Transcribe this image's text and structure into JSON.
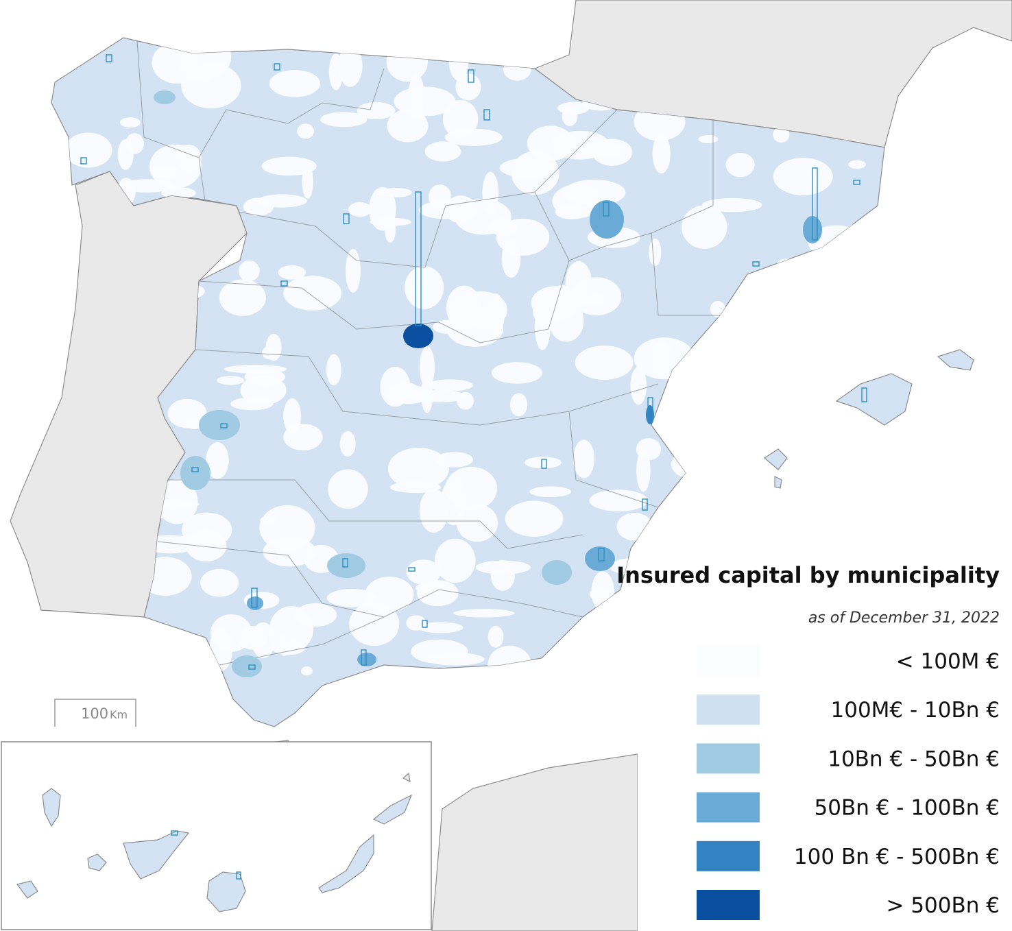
{
  "title": "Insured capital by municipality",
  "subtitle": "as of December 31, 2022",
  "scale_bar": {
    "value": "100",
    "unit": "Km"
  },
  "legend": [
    {
      "label": "< 100M €",
      "color": "#fbfcfe"
    },
    {
      "label": "100M€ - 10Bn €",
      "color": "#cfe0f2"
    },
    {
      "label": "10Bn € - 50Bn €",
      "color": "#a0cbe3"
    },
    {
      "label": "50Bn € - 100Bn €",
      "color": "#6aaad6"
    },
    {
      "label": "100 Bn € - 500Bn €",
      "color": "#3383c2"
    },
    {
      "label": "> 500Bn €",
      "color": "#0a4fa0"
    }
  ]
}
